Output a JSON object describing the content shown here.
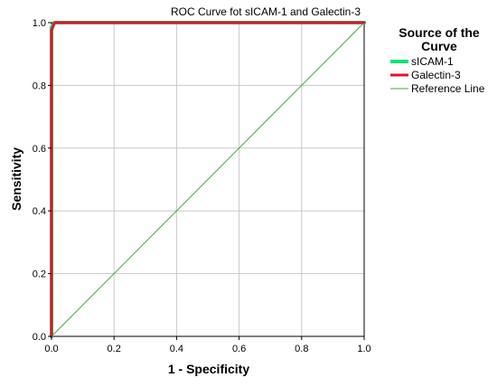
{
  "chart_data": {
    "type": "line",
    "title": "ROC Curve fot sICAM-1 and Galectin-3",
    "xlabel": "1 - Specificity",
    "ylabel": "Sensitivity",
    "xlim": [
      0,
      1
    ],
    "ylim": [
      0,
      1
    ],
    "x_ticks": [
      "0.0",
      "0.2",
      "0.4",
      "0.6",
      "0.8",
      "1.0"
    ],
    "y_ticks": [
      "0.0",
      "0.2",
      "0.4",
      "0.6",
      "0.8",
      "1.0"
    ],
    "grid": true,
    "legend_title": "Source of the Curve",
    "legend_title_lines": [
      "Source of the",
      "Curve"
    ],
    "legend_position": "right",
    "series": [
      {
        "name": "sICAM-1",
        "color": "#00e676",
        "x": [
          0,
          0,
          0.01,
          1
        ],
        "y": [
          0,
          0.985,
          1,
          1
        ]
      },
      {
        "name": "Galectin-3",
        "color": "#e8102e",
        "x": [
          0,
          0,
          0.01,
          1
        ],
        "y": [
          0,
          0.975,
          1,
          1
        ]
      },
      {
        "name": "Reference Line",
        "color": "#3daa3d",
        "x": [
          0,
          1
        ],
        "y": [
          0,
          1
        ]
      }
    ]
  }
}
